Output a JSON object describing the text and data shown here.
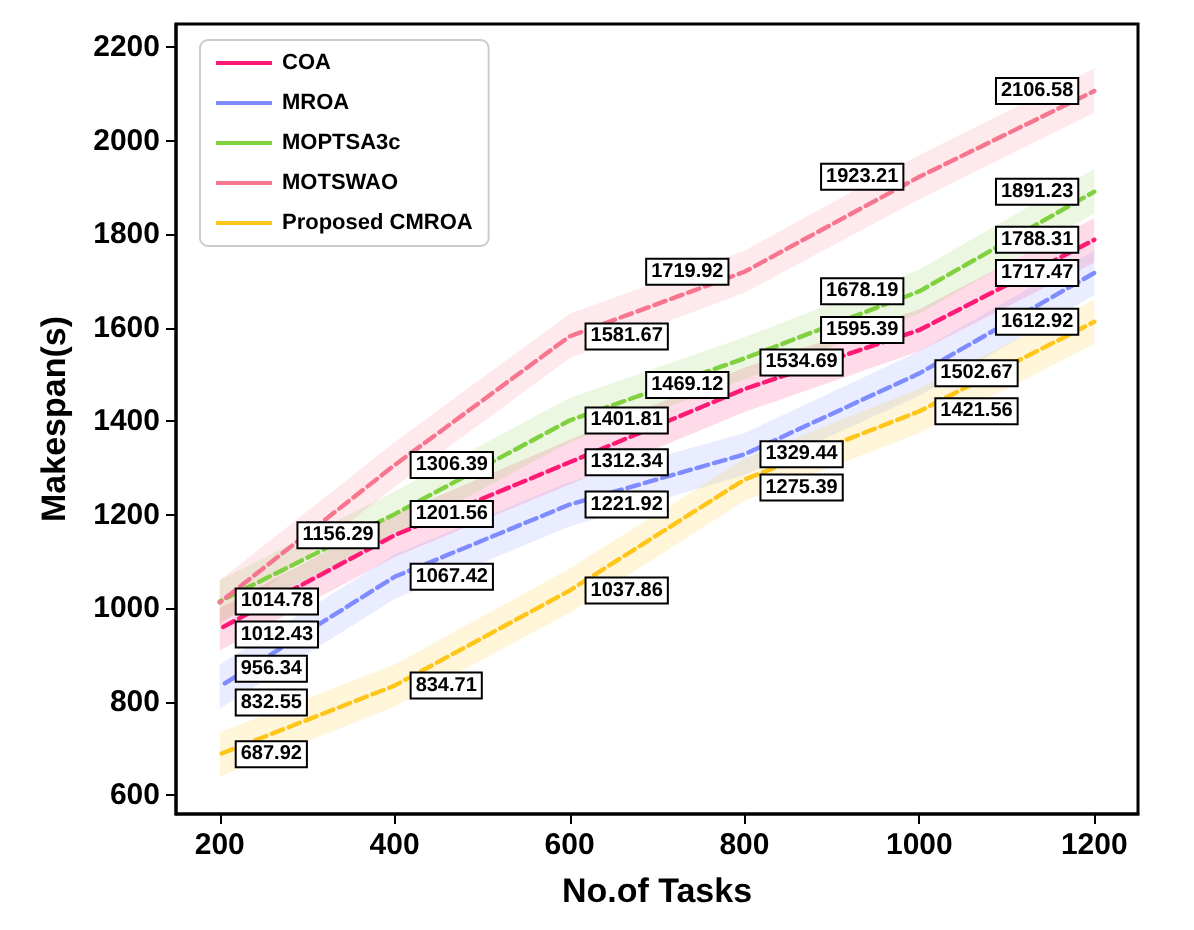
{
  "chart_data": {
    "type": "line",
    "xlabel": "No.of Tasks",
    "ylabel": "Makespan(s)",
    "x": [
      200,
      400,
      600,
      800,
      1000,
      1200
    ],
    "xlim": [
      150,
      1250
    ],
    "xticks": [
      200,
      400,
      600,
      800,
      1000,
      1200
    ],
    "ylim": [
      560,
      2250
    ],
    "yticks": [
      600,
      800,
      1000,
      1200,
      1400,
      1600,
      1800,
      2000,
      2200
    ],
    "grid": false,
    "legend": "top left",
    "marker": "none",
    "line_style": "dashed",
    "data_labels": true,
    "series": [
      {
        "name": "COA",
        "color": "#ff1a75",
        "values": [
          956.34,
          1156.29,
          1312.34,
          1469.12,
          1595.39,
          1788.31
        ],
        "lower": [
          910,
          1110,
          1265,
          1420,
          1550,
          1740
        ],
        "upper": [
          1000,
          1200,
          1360,
          1515,
          1640,
          1835
        ]
      },
      {
        "name": "MROA",
        "color": "#7f8cff",
        "values": [
          832.55,
          1067.42,
          1221.92,
          1329.44,
          1502.67,
          1717.47
        ],
        "lower": [
          785,
          1020,
          1175,
          1285,
          1455,
          1670
        ],
        "upper": [
          880,
          1115,
          1270,
          1375,
          1550,
          1765
        ]
      },
      {
        "name": "MOPTSA3c",
        "color": "#80d040",
        "values": [
          1014.78,
          1201.56,
          1401.81,
          1534.69,
          1678.19,
          1891.23
        ],
        "lower": [
          970,
          1155,
          1355,
          1490,
          1630,
          1845
        ],
        "upper": [
          1060,
          1250,
          1450,
          1580,
          1725,
          1940
        ]
      },
      {
        "name": "MOTSWAO",
        "color": "#f7768f",
        "values": [
          1012.43,
          1306.39,
          1581.67,
          1719.92,
          1923.21,
          2106.58
        ],
        "lower": [
          965,
          1260,
          1535,
          1675,
          1875,
          2060
        ],
        "upper": [
          1060,
          1355,
          1630,
          1765,
          1970,
          2155
        ]
      },
      {
        "name": "Proposed CMROA",
        "color": "#ffc61a",
        "values": [
          687.92,
          834.71,
          1037.86,
          1275.39,
          1421.56,
          1612.92
        ],
        "lower": [
          640,
          790,
          990,
          1230,
          1375,
          1565
        ],
        "upper": [
          735,
          880,
          1085,
          1320,
          1470,
          1660
        ]
      }
    ]
  }
}
